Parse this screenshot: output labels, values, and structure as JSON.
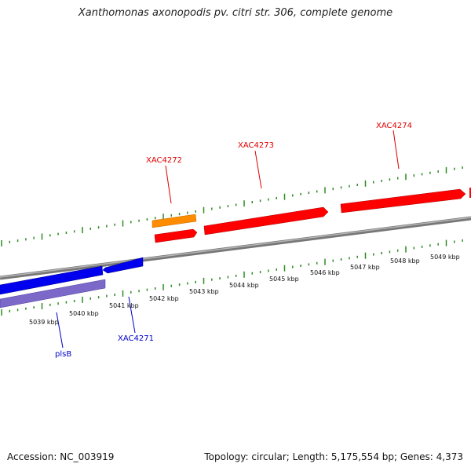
{
  "title": "Xanthomonas axonopodis pv. citri str. 306, complete genome",
  "footer": {
    "accession": "Accession: NC_003919",
    "topology": "Topology: circular; Length: 5,175,554 bp; Genes: 4,373"
  },
  "colors": {
    "forward_gene": "#ff0000",
    "reverse_gene": "#0000ee",
    "cds_orange": "#ff8c00",
    "purple_feature": "#7b68c8",
    "backbone": "#888888",
    "ticks": "#2e8b22",
    "forward_label": "#dd0000",
    "reverse_label": "#0000cc"
  },
  "kbp_labels": [
    "5039 kbp",
    "5040 kbp",
    "5041 kbp",
    "5042 kbp",
    "5043 kbp",
    "5044 kbp",
    "5045 kbp",
    "5046 kbp",
    "5047 kbp",
    "5048 kbp",
    "5049 kbp"
  ],
  "forward_genes": [
    {
      "label": "XAC4272"
    },
    {
      "label": "XAC4273"
    },
    {
      "label": "XAC4274"
    }
  ],
  "reverse_genes": [
    {
      "label": "plsB"
    },
    {
      "label": "XAC4271"
    }
  ]
}
